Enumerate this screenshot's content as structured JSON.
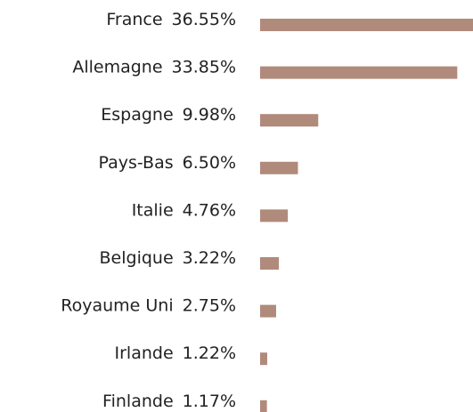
{
  "chart_data": {
    "type": "bar",
    "orientation": "horizontal",
    "categories": [
      "France",
      "Allemagne",
      "Espagne",
      "Pays-Bas",
      "Italie",
      "Belgique",
      "Royaume Uni",
      "Irlande",
      "Finlande"
    ],
    "values": [
      36.55,
      33.85,
      9.98,
      6.5,
      4.76,
      3.22,
      2.75,
      1.22,
      1.17
    ],
    "value_labels": [
      "36.55%",
      "33.85%",
      "9.98%",
      "6.50%",
      "4.76%",
      "3.22%",
      "2.75%",
      "1.22%",
      "1.17%"
    ],
    "color": "#b08a7b"
  }
}
